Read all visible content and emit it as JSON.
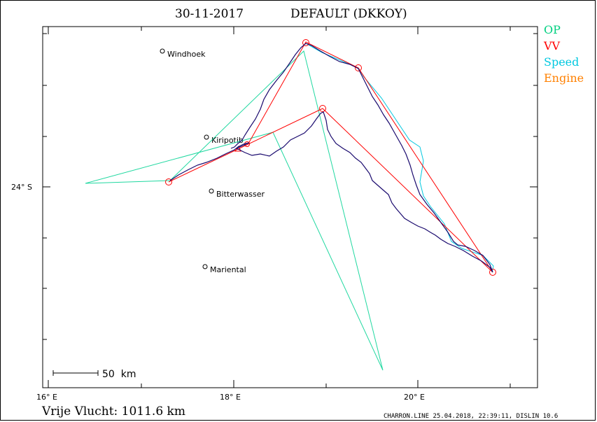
{
  "header": {
    "date": "30-11-2017",
    "title": "DEFAULT (DKKOY)"
  },
  "legend": [
    {
      "label": "OP",
      "color": "#00d080"
    },
    {
      "label": "VV",
      "color": "#ff0000"
    },
    {
      "label": "Speed",
      "color": "#00c8e0"
    },
    {
      "label": "Engine",
      "color": "#ff8000"
    }
  ],
  "axes": {
    "x_ticks": [
      "16° E",
      "18° E",
      "20° E"
    ],
    "y_ticks": [
      "24° S"
    ]
  },
  "places": [
    {
      "name": "Windhoek"
    },
    {
      "name": "Kiripotib"
    },
    {
      "name": "Bitterwasser"
    },
    {
      "name": "Mariental"
    }
  ],
  "scale": {
    "label": "50  km"
  },
  "footer": {
    "distance": "Vrije Vlucht: 1011.6 km",
    "credit": "CHARRON.LINE 25.04.2018, 22:39:11, DISLIN 10.6"
  },
  "colors": {
    "track": "#1a0a6e",
    "op_line": "#20d8a0",
    "vv_line": "#ff0000",
    "speed_line": "#00c8e0",
    "engine": "#ff8000"
  }
}
